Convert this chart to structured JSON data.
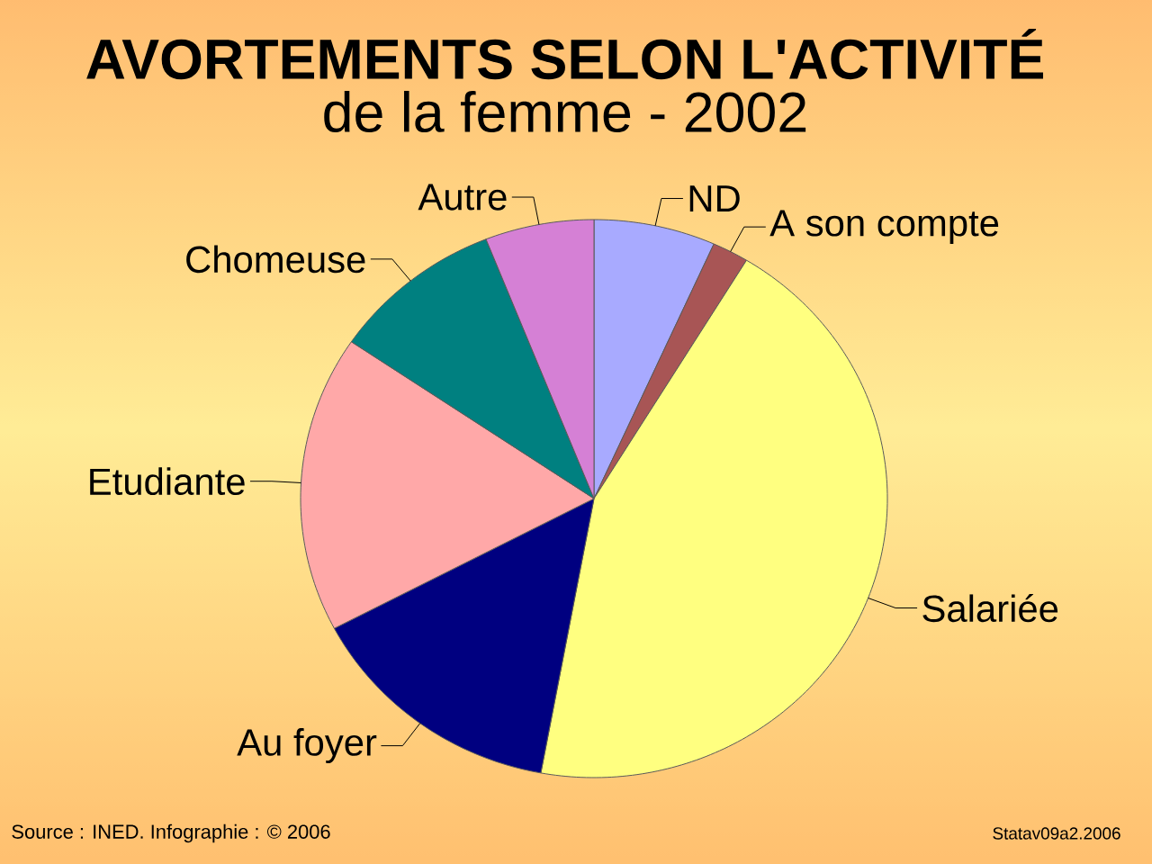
{
  "chart_data": {
    "type": "pie",
    "title": "AVORTEMENTS SELON L'ACTIVITÉ",
    "subtitle": "de la femme - 2002",
    "categories": [
      "ND",
      "A son compte",
      "Salariée",
      "Au foyer",
      "Etudiante",
      "Chomeuse",
      "Autre"
    ],
    "values": [
      6.7,
      2.0,
      44.2,
      14.4,
      17.2,
      9.5,
      6.0
    ],
    "colors": [
      "#a8aaff",
      "#a85555",
      "#ffff80",
      "#000080",
      "#ffa8a8",
      "#008080",
      "#d580d5"
    ],
    "annotations": [
      "Source : INED. Infographie : © 2006",
      "Statav09a2.2006"
    ]
  }
}
